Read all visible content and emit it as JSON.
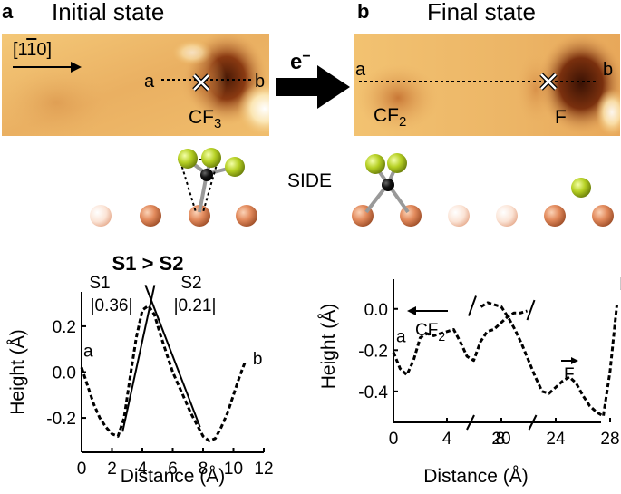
{
  "panel_a": {
    "letter": "a",
    "title": "Initial state",
    "direction_label_prefix": "[1",
    "direction_label_bar": "1",
    "direction_label_suffix": "0]",
    "point_a": "a",
    "point_b": "b",
    "molecule_base": "CF",
    "molecule_sub": "3"
  },
  "arrow": {
    "label": "e",
    "label_sup": "−"
  },
  "panel_b": {
    "letter": "b",
    "title": "Final state",
    "point_a": "a",
    "point_b": "b",
    "fragment1_base": "CF",
    "fragment1_sub": "2",
    "fragment2": "F"
  },
  "side_label": "SIDE",
  "colors": {
    "stm_bright": "#f6d78a",
    "stm_mid": "#dd9a40",
    "stm_dark": "#5a2208",
    "copper_atom": "#e28a5c",
    "fluorine_atom": "#b6d024",
    "carbon_atom": "#111111",
    "bond": "#999999"
  },
  "chart_data": [
    {
      "type": "line",
      "title": "S1 > S2",
      "xlabel": "Distance (Å)",
      "ylabel": "Height (Å)",
      "xlim": [
        0,
        12
      ],
      "ylim": [
        -0.35,
        0.35
      ],
      "xticks": [
        "0",
        "2",
        "4",
        "6",
        "8",
        "10",
        "12"
      ],
      "yticks": [
        "0.2",
        "0.0",
        "-0.2"
      ],
      "annotations": {
        "s1_label": "S1",
        "s1_value": "|0.36|",
        "s2_label": "S2",
        "s2_value": "|0.21|",
        "point_a": "a",
        "point_b": "b"
      },
      "series": [
        {
          "x": [
            0.0,
            0.4,
            0.8,
            1.2,
            1.6,
            2.0,
            2.4,
            2.8,
            3.2,
            3.6,
            4.0,
            4.4,
            4.8,
            5.2,
            5.6,
            6.0,
            6.4,
            6.8,
            7.2,
            7.6,
            8.0,
            8.4,
            8.8,
            9.2,
            9.6,
            10.0,
            10.4,
            10.8
          ],
          "y": [
            0.02,
            -0.06,
            -0.14,
            -0.2,
            -0.24,
            -0.27,
            -0.28,
            -0.2,
            -0.02,
            0.15,
            0.27,
            0.29,
            0.25,
            0.16,
            0.08,
            0.0,
            -0.06,
            -0.12,
            -0.18,
            -0.23,
            -0.28,
            -0.3,
            -0.29,
            -0.24,
            -0.18,
            -0.1,
            -0.02,
            0.05
          ]
        }
      ],
      "fit_lines": [
        {
          "name": "S1",
          "x": [
            2.7,
            4.8
          ],
          "y": [
            -0.26,
            0.38
          ]
        },
        {
          "name": "S2",
          "x": [
            4.2,
            7.8
          ],
          "y": [
            0.38,
            -0.24
          ]
        }
      ]
    },
    {
      "type": "line",
      "xlabel": "Distance (Å)",
      "ylabel": "Height (Å)",
      "ylim": [
        -0.55,
        0.1
      ],
      "axis_break": "between 10 and 18 Å",
      "xticks": [
        "0",
        "4",
        "8",
        "20",
        "24",
        "28"
      ],
      "yticks": [
        "0.0",
        "-0.2",
        "-0.4"
      ],
      "annotations": {
        "fragment1_base": "CF",
        "fragment1_sub": "2",
        "fragment2": "F",
        "point_a": "a",
        "point_b": "b"
      },
      "series": [
        {
          "x": [
            0.0,
            0.5,
            1.0,
            1.5,
            2.0,
            2.5,
            3.0,
            3.5,
            4.0,
            4.5,
            5.0,
            5.5,
            6.0,
            6.5,
            7.0,
            7.5,
            8.0,
            8.5,
            9.0,
            9.5,
            10.0,
            18.5,
            19.0,
            19.5,
            20.0,
            20.5,
            21.0,
            21.5,
            22.0,
            22.5,
            23.0,
            23.5,
            24.0,
            24.5,
            25.0,
            25.5,
            26.0,
            26.5,
            27.0,
            27.5,
            28.0,
            28.5
          ],
          "y": [
            -0.21,
            -0.29,
            -0.32,
            -0.25,
            -0.14,
            -0.12,
            -0.13,
            -0.12,
            -0.11,
            -0.1,
            -0.16,
            -0.23,
            -0.25,
            -0.16,
            -0.11,
            -0.1,
            -0.07,
            -0.04,
            -0.02,
            -0.02,
            -0.01,
            0.01,
            0.03,
            0.02,
            0.01,
            -0.04,
            -0.1,
            -0.17,
            -0.25,
            -0.33,
            -0.4,
            -0.41,
            -0.38,
            -0.35,
            -0.33,
            -0.36,
            -0.42,
            -0.47,
            -0.5,
            -0.52,
            -0.3,
            0.02
          ]
        }
      ]
    }
  ]
}
